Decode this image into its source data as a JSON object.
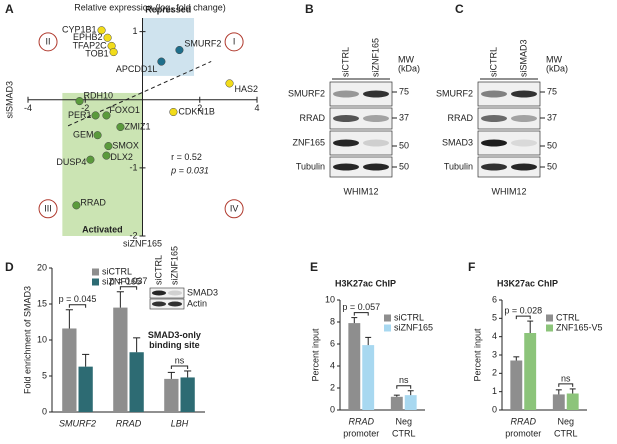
{
  "panel_labels": [
    "A",
    "B",
    "C",
    "D",
    "E",
    "F"
  ],
  "chart_data": [
    {
      "type": "scatter",
      "title": "Relative expression (log₂ fold change)",
      "xlabel": "siZNF165",
      "ylabel": "siSMAD3",
      "x": [
        -1.43,
        -1.22,
        -1.08,
        -1.01,
        1.29,
        0.66,
        3.04,
        1.08,
        -2.2,
        -1.64,
        -1.26,
        -0.77,
        -1.57,
        -1.19,
        -1.26,
        -1.82,
        -2.31
      ],
      "values": [
        1.02,
        0.91,
        0.79,
        0.7,
        0.73,
        0.56,
        0.24,
        -0.18,
        -0.02,
        -0.23,
        -0.23,
        -0.4,
        -0.52,
        -0.68,
        -0.82,
        -0.88,
        -1.55
      ],
      "labels": [
        "CYP1B1",
        "EPHB2",
        "TFAP2C",
        "TOB1",
        "SMURF2",
        "APCDD1L",
        "HAS2",
        "CDKN1B",
        "RDH10",
        "PER1",
        "FOXO1",
        "ZMIZ1",
        "GEM",
        "SMOX",
        "DLX2",
        "DUSP4",
        "RRAD"
      ],
      "colors": [
        "#f2dc1a",
        "#f2dc1a",
        "#f2dc1a",
        "#f2dc1a",
        "#1f6f8b",
        "#1f6f8b",
        "#f2dc1a",
        "#f2dc1a",
        "#5a9a3c",
        "#5a9a3c",
        "#5a9a3c",
        "#5a9a3c",
        "#5a9a3c",
        "#5a9a3c",
        "#5a9a3c",
        "#5a9a3c",
        "#5a9a3c"
      ],
      "xlim": [
        -4,
        4
      ],
      "ylim": [
        -2,
        1.2
      ],
      "xticks": [
        -4,
        -2,
        2,
        4
      ],
      "yticks": [
        -2,
        -1,
        1
      ],
      "regions": [
        "Repressed",
        "Activated"
      ],
      "quadrants": [
        "I",
        "II",
        "III",
        "IV"
      ],
      "annotations": [
        "r = 0.52",
        "p = 0.031"
      ]
    },
    {
      "type": "bar",
      "ylabel": "Fold enrichment of SMAD3",
      "categories": [
        "SMURF2",
        "RRAD",
        "LBH"
      ],
      "series": [
        {
          "name": "siCTRL",
          "color": "#8e8e8e",
          "values": [
            11.6,
            14.5,
            4.6
          ],
          "errors": [
            2.6,
            2.2,
            0.9
          ]
        },
        {
          "name": "siZNF165",
          "color": "#2d6b73",
          "values": [
            6.3,
            8.3,
            4.8
          ],
          "errors": [
            1.7,
            2.0,
            0.9
          ]
        }
      ],
      "ylim": [
        0,
        20
      ],
      "yticks": [
        0,
        5,
        10,
        15,
        20
      ],
      "significance": [
        "p = 0.045",
        "p = 0.037",
        "ns"
      ],
      "note": [
        "SMAD3-only",
        "binding site"
      ],
      "inset_blot": {
        "lanes": [
          "siCTRL",
          "siZNF165"
        ],
        "rows": [
          "SMAD3",
          "Actin"
        ]
      }
    },
    {
      "type": "bar",
      "title": "H3K27ac ChIP",
      "ylabel": "Percent input",
      "categories": [
        [
          "RRAD",
          "promoter"
        ],
        [
          "Neg",
          "CTRL"
        ]
      ],
      "series": [
        {
          "name": "siCTRL",
          "color": "#8e8e8e",
          "values": [
            7.9,
            1.2
          ],
          "errors": [
            0.5,
            0.15
          ]
        },
        {
          "name": "siZNF165",
          "color": "#a8d8f0",
          "values": [
            5.9,
            1.35
          ],
          "errors": [
            0.7,
            0.4
          ]
        }
      ],
      "ylim": [
        0,
        10
      ],
      "yticks": [
        0,
        2,
        4,
        6,
        8,
        10
      ],
      "significance": [
        "p = 0.057",
        "ns"
      ]
    },
    {
      "type": "bar",
      "title": "H3K27ac ChIP",
      "ylabel": "Percent input",
      "categories": [
        [
          "RRAD",
          "promoter"
        ],
        [
          "Neg",
          "CTRL"
        ]
      ],
      "series": [
        {
          "name": "CTRL",
          "color": "#8e8e8e",
          "values": [
            2.7,
            0.85
          ],
          "errors": [
            0.2,
            0.25
          ]
        },
        {
          "name": "ZNF165-V5",
          "color": "#8cc47a",
          "values": [
            4.2,
            0.9
          ],
          "errors": [
            0.65,
            0.25
          ]
        }
      ],
      "ylim": [
        0,
        6
      ],
      "yticks": [
        0,
        1,
        2,
        3,
        4,
        5,
        6
      ],
      "significance": [
        "p = 0.028",
        "ns"
      ]
    }
  ],
  "blots": [
    {
      "lanes": [
        "siCTRL",
        "siZNF165"
      ],
      "rows": [
        "SMURF2",
        "RRAD",
        "ZNF165",
        "Tubulin"
      ],
      "mw_label": [
        "MW",
        "(kDa)"
      ],
      "markers": [
        75,
        37,
        50,
        50
      ],
      "cell_line": "WHIM12"
    },
    {
      "lanes": [
        "siCTRL",
        "siSMAD3"
      ],
      "rows": [
        "SMURF2",
        "RRAD",
        "SMAD3",
        "Tubulin"
      ],
      "mw_label": [
        "MW",
        "(kDa)"
      ],
      "markers": [
        75,
        37,
        50,
        50
      ],
      "cell_line": "WHIM12"
    }
  ]
}
